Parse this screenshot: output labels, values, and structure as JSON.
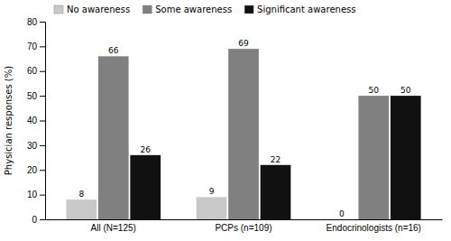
{
  "chart_data": {
    "type": "bar",
    "categories": [
      "All (N=125)",
      "PCPs (n=109)",
      "Endocrinologists (n=16)"
    ],
    "series": [
      {
        "name": "No awareness",
        "color": "#c8c8c8",
        "values": [
          8,
          9,
          0
        ]
      },
      {
        "name": "Some awareness",
        "color": "#808080",
        "values": [
          66,
          69,
          50
        ]
      },
      {
        "name": "Significant awareness",
        "color": "#111111",
        "values": [
          26,
          22,
          50
        ]
      }
    ],
    "ylabel": "Physician responses (%)",
    "ylim": [
      0,
      80
    ],
    "yticks": [
      0,
      10,
      20,
      30,
      40,
      50,
      60,
      70,
      80
    ],
    "data_labels": true,
    "legend": "upper left",
    "grid": false
  }
}
